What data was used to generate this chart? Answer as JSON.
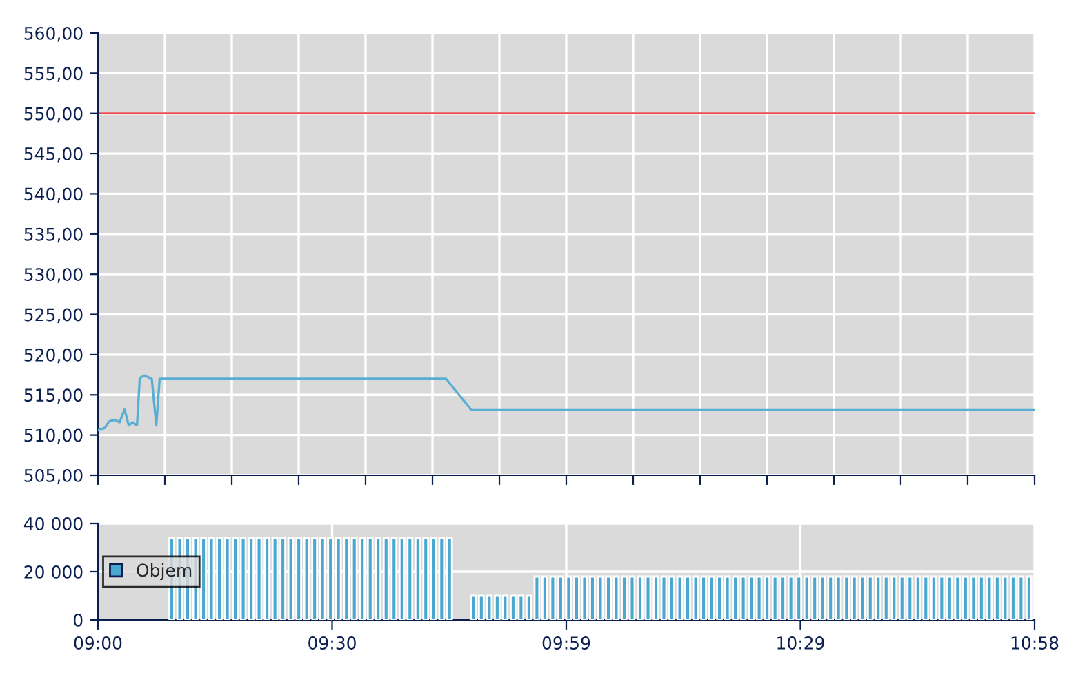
{
  "chart_data": [
    {
      "type": "line",
      "xlim": [
        9.0,
        10.9667
      ],
      "xticks": [
        {
          "value": 9.0,
          "label": null
        },
        {
          "value": 9.1405,
          "label": null
        },
        {
          "value": 9.281,
          "label": null
        },
        {
          "value": 9.4214,
          "label": null
        },
        {
          "value": 9.5619,
          "label": null
        },
        {
          "value": 9.7024,
          "label": null
        },
        {
          "value": 9.8429,
          "label": null
        },
        {
          "value": 9.9833,
          "label": null
        },
        {
          "value": 10.1238,
          "label": null
        },
        {
          "value": 10.2643,
          "label": null
        },
        {
          "value": 10.4048,
          "label": null
        },
        {
          "value": 10.5452,
          "label": null
        },
        {
          "value": 10.6857,
          "label": null
        },
        {
          "value": 10.8262,
          "label": null
        },
        {
          "value": 10.9667,
          "label": null
        }
      ],
      "ylim": [
        505,
        560
      ],
      "yticks": [
        {
          "value": 505,
          "label": "505,00"
        },
        {
          "value": 510,
          "label": "510,00"
        },
        {
          "value": 515,
          "label": "515,00"
        },
        {
          "value": 520,
          "label": "520,00"
        },
        {
          "value": 525,
          "label": "525,00"
        },
        {
          "value": 530,
          "label": "530,00"
        },
        {
          "value": 535,
          "label": "535,00"
        },
        {
          "value": 540,
          "label": "540,00"
        },
        {
          "value": 545,
          "label": "545,00"
        },
        {
          "value": 550,
          "label": "550,00"
        },
        {
          "value": 555,
          "label": "555,00"
        },
        {
          "value": 560,
          "label": "560,00"
        }
      ],
      "tick_labels": "y",
      "grid": true,
      "ref_lines": [
        {
          "axis": "y",
          "value": 550,
          "color": "#e8474c"
        }
      ],
      "series": [
        {
          "color": "#5aaed3",
          "x": [
            9.0,
            9.0145,
            9.0232,
            9.0356,
            9.0455,
            9.0559,
            9.0646,
            9.0724,
            9.082,
            9.0878,
            9.0976,
            9.113,
            9.1225,
            9.1295,
            9.7309,
            9.7842,
            10.9667
          ],
          "values": [
            510.6,
            510.9,
            511.7,
            511.9,
            511.6,
            513.2,
            511.2,
            511.6,
            511.2,
            517.1,
            517.4,
            517.0,
            511.2,
            517.0,
            517.0,
            513.1,
            513.1
          ]
        }
      ]
    },
    {
      "type": "bar",
      "xlim": [
        9.0,
        10.9667
      ],
      "xticks": [
        {
          "value": 9.0,
          "label": "09:00"
        },
        {
          "value": 9.4917,
          "label": "09:30"
        },
        {
          "value": 9.9833,
          "label": "09:59"
        },
        {
          "value": 10.475,
          "label": "10:29"
        },
        {
          "value": 10.9667,
          "label": "10:58"
        }
      ],
      "ylim": [
        0,
        40000
      ],
      "yticks": [
        {
          "value": 0,
          "label": "0"
        },
        {
          "value": 20000,
          "label": "20 000"
        },
        {
          "value": 40000,
          "label": "40 000"
        }
      ],
      "grid": true,
      "legend": "left",
      "series": [
        {
          "name": "Objem",
          "color": "#4aa8d0",
          "x": [
            9.15,
            9.1667,
            9.1833,
            9.2,
            9.2167,
            9.2333,
            9.25,
            9.2667,
            9.2833,
            9.3,
            9.3167,
            9.3333,
            9.35,
            9.3667,
            9.3833,
            9.4,
            9.4167,
            9.4333,
            9.45,
            9.4667,
            9.4833,
            9.5,
            9.5167,
            9.5333,
            9.55,
            9.5667,
            9.5833,
            9.6,
            9.6167,
            9.6333,
            9.65,
            9.6667,
            9.6833,
            9.7,
            9.7167,
            9.7333,
            9.7833,
            9.8,
            9.8167,
            9.8333,
            9.85,
            9.8667,
            9.8833,
            9.9,
            9.9167,
            9.9333,
            9.95,
            9.9667,
            9.9833,
            10.0,
            10.0167,
            10.0333,
            10.05,
            10.0667,
            10.0833,
            10.1,
            10.1167,
            10.1333,
            10.15,
            10.1667,
            10.1833,
            10.2,
            10.2167,
            10.2333,
            10.25,
            10.2667,
            10.2833,
            10.3,
            10.3167,
            10.3333,
            10.35,
            10.3667,
            10.3833,
            10.4,
            10.4167,
            10.4333,
            10.45,
            10.4667,
            10.4833,
            10.5,
            10.5167,
            10.5333,
            10.55,
            10.5667,
            10.5833,
            10.6,
            10.6167,
            10.6333,
            10.65,
            10.6667,
            10.6833,
            10.7,
            10.7167,
            10.7333,
            10.75,
            10.7667,
            10.7833,
            10.8,
            10.8167,
            10.8333,
            10.85,
            10.8667,
            10.8833,
            10.9,
            10.9167,
            10.9333,
            10.95
          ],
          "values": [
            34000,
            34000,
            34000,
            34000,
            34000,
            34000,
            34000,
            34000,
            34000,
            34000,
            34000,
            34000,
            34000,
            34000,
            34000,
            34000,
            34000,
            34000,
            34000,
            34000,
            34000,
            34000,
            34000,
            34000,
            34000,
            34000,
            34000,
            34000,
            34000,
            34000,
            34000,
            34000,
            34000,
            34000,
            34000,
            34000,
            10000,
            10000,
            10000,
            10000,
            10000,
            10000,
            10000,
            10000,
            18000,
            18000,
            18000,
            18000,
            18000,
            18000,
            18000,
            18000,
            18000,
            18000,
            18000,
            18000,
            18000,
            18000,
            18000,
            18000,
            18000,
            18000,
            18000,
            18000,
            18000,
            18000,
            18000,
            18000,
            18000,
            18000,
            18000,
            18000,
            18000,
            18000,
            18000,
            18000,
            18000,
            18000,
            18000,
            18000,
            18000,
            18000,
            18000,
            18000,
            18000,
            18000,
            18000,
            18000,
            18000,
            18000,
            18000,
            18000,
            18000,
            18000,
            18000,
            18000,
            18000,
            18000,
            18000,
            18000,
            18000,
            18000,
            18000,
            18000,
            18000,
            18000,
            18000
          ]
        }
      ]
    }
  ]
}
